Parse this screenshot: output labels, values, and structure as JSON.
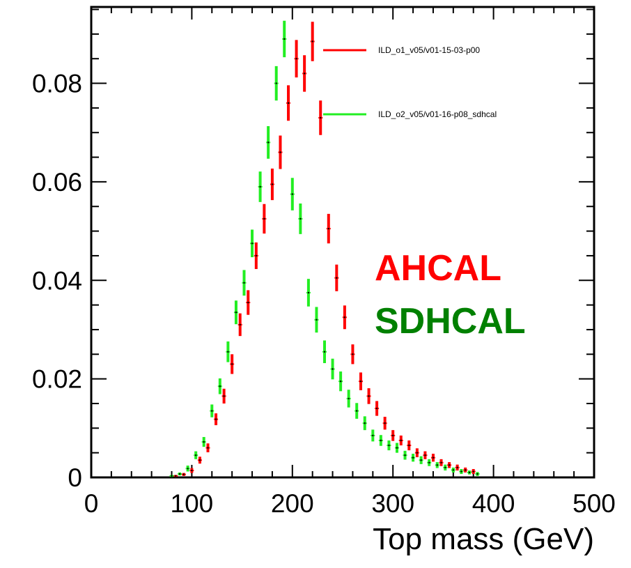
{
  "chart_data": {
    "type": "scatter",
    "title": "",
    "xlabel": "Top mass (GeV)",
    "ylabel": "",
    "xlim": [
      0,
      500
    ],
    "ylim": [
      0,
      0.0955
    ],
    "grid": false,
    "legend_position": "top-right",
    "x_ticks": [
      "0",
      "100",
      "200",
      "300",
      "400",
      "500"
    ],
    "y_ticks": [
      "0",
      "0.02",
      "0.04",
      "0.06",
      "0.08"
    ],
    "annotations": [
      {
        "text": "AHCAL",
        "color": "#ff0000"
      },
      {
        "text": "SDHCAL",
        "color": "#008000"
      }
    ],
    "series": [
      {
        "name": "ILD_o1_v05/v01-15-03-p00",
        "color": "#ff0000",
        "x": [
          84,
          92,
          100,
          108,
          116,
          124,
          132,
          140,
          148,
          156,
          164,
          172,
          180,
          188,
          196,
          204,
          212,
          220,
          228,
          236,
          244,
          252,
          260,
          268,
          276,
          284,
          292,
          300,
          308,
          316,
          324,
          332,
          340,
          348,
          356,
          364,
          372,
          380
        ],
        "y": [
          0.0003,
          0.0006,
          0.0014,
          0.0035,
          0.006,
          0.0118,
          0.0165,
          0.023,
          0.031,
          0.0355,
          0.045,
          0.0525,
          0.0595,
          0.066,
          0.076,
          0.085,
          0.082,
          0.0885,
          0.073,
          0.0505,
          0.0405,
          0.0325,
          0.025,
          0.0195,
          0.0165,
          0.014,
          0.011,
          0.0085,
          0.0075,
          0.0065,
          0.005,
          0.0045,
          0.004,
          0.003,
          0.0025,
          0.002,
          0.0015,
          0.0012
        ],
        "err": [
          0.0002,
          0.0003,
          0.0005,
          0.0007,
          0.0009,
          0.0012,
          0.0015,
          0.002,
          0.0023,
          0.0025,
          0.0027,
          0.003,
          0.0032,
          0.0034,
          0.0036,
          0.0038,
          0.0037,
          0.004,
          0.0035,
          0.003,
          0.0027,
          0.0024,
          0.002,
          0.0018,
          0.0016,
          0.0015,
          0.0013,
          0.0011,
          0.001,
          0.001,
          0.0009,
          0.0008,
          0.0008,
          0.0007,
          0.0006,
          0.0006,
          0.0005,
          0.0005
        ]
      },
      {
        "name": "ILD_o2_v05/v01-16-p08_sdhcal",
        "color": "#22ee22",
        "x": [
          80,
          88,
          96,
          104,
          112,
          120,
          128,
          136,
          144,
          152,
          160,
          168,
          176,
          184,
          192,
          200,
          208,
          216,
          224,
          232,
          240,
          248,
          256,
          264,
          272,
          280,
          288,
          296,
          304,
          312,
          320,
          328,
          336,
          344,
          352,
          360,
          368,
          376,
          384
        ],
        "y": [
          0.0003,
          0.0007,
          0.0018,
          0.0045,
          0.0072,
          0.0135,
          0.0185,
          0.0255,
          0.0335,
          0.0395,
          0.0475,
          0.059,
          0.068,
          0.08,
          0.089,
          0.0575,
          0.0525,
          0.0375,
          0.032,
          0.0255,
          0.022,
          0.0195,
          0.016,
          0.0135,
          0.011,
          0.0085,
          0.0075,
          0.0065,
          0.006,
          0.0045,
          0.004,
          0.0035,
          0.003,
          0.0025,
          0.002,
          0.0015,
          0.0012,
          0.001,
          0.0007
        ],
        "err": [
          0.0002,
          0.0003,
          0.0006,
          0.0008,
          0.001,
          0.0013,
          0.0016,
          0.0021,
          0.0024,
          0.0026,
          0.0028,
          0.0031,
          0.0033,
          0.0035,
          0.0037,
          0.0033,
          0.0031,
          0.0028,
          0.0026,
          0.0023,
          0.0021,
          0.002,
          0.0018,
          0.0016,
          0.0014,
          0.0012,
          0.0011,
          0.001,
          0.001,
          0.0009,
          0.0008,
          0.0008,
          0.0007,
          0.0006,
          0.0006,
          0.0005,
          0.0005,
          0.0004,
          0.0004
        ]
      }
    ]
  }
}
